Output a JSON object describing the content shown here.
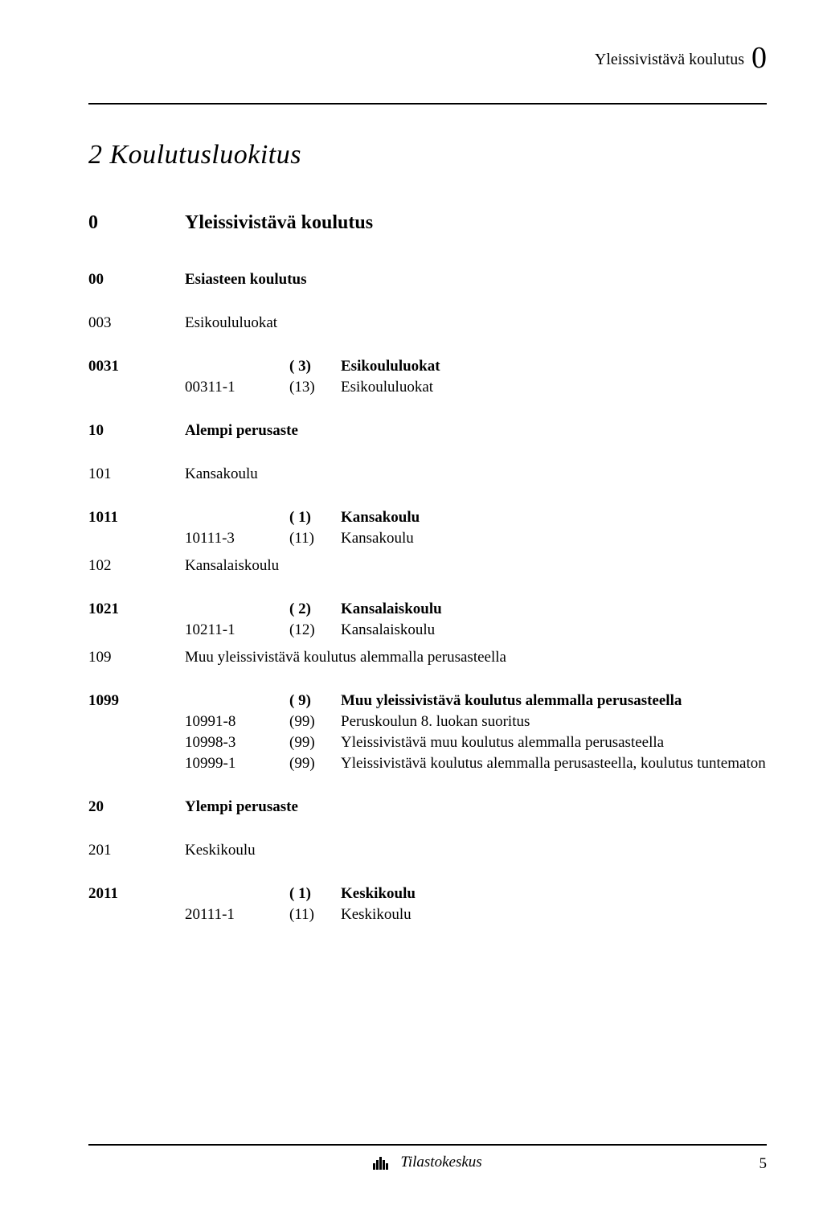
{
  "header": {
    "category": "Yleissivistävä koulutus",
    "big_code": "0"
  },
  "chapter": {
    "title": "2 Koulutusluokitus"
  },
  "section": {
    "code": "0",
    "name": "Yleissivistävä koulutus"
  },
  "entries": [
    {
      "type": "level1",
      "code": "00",
      "name": "Esiasteen koulutus",
      "bold": true
    },
    {
      "type": "gap"
    },
    {
      "type": "level1",
      "code": "003",
      "name": "Esikoululuokat",
      "bold": false
    },
    {
      "type": "gap"
    },
    {
      "type": "level2",
      "code": "0031",
      "sub": "",
      "paren": "( 3)",
      "name": "Esikoululuokat",
      "bold": true
    },
    {
      "type": "level2",
      "code": "",
      "sub": "00311-1",
      "paren": "(13)",
      "name": "Esikoululuokat",
      "bold": false
    },
    {
      "type": "gap"
    },
    {
      "type": "level1",
      "code": "10",
      "name": "Alempi perusaste",
      "bold": true
    },
    {
      "type": "gap"
    },
    {
      "type": "level1",
      "code": "101",
      "name": "Kansakoulu",
      "bold": false
    },
    {
      "type": "gap"
    },
    {
      "type": "level2",
      "code": "1011",
      "sub": "",
      "paren": "( 1)",
      "name": "Kansakoulu",
      "bold": true
    },
    {
      "type": "level2",
      "code": "",
      "sub": "10111-3",
      "paren": "(11)",
      "name": "Kansakoulu",
      "bold": false
    },
    {
      "type": "smallgap"
    },
    {
      "type": "level1",
      "code": "102",
      "name": "Kansalaiskoulu",
      "bold": false
    },
    {
      "type": "gap"
    },
    {
      "type": "level2",
      "code": "1021",
      "sub": "",
      "paren": "( 2)",
      "name": "Kansalaiskoulu",
      "bold": true
    },
    {
      "type": "level2",
      "code": "",
      "sub": "10211-1",
      "paren": "(12)",
      "name": "Kansalaiskoulu",
      "bold": false
    },
    {
      "type": "smallgap"
    },
    {
      "type": "level1",
      "code": "109",
      "name": "Muu yleissivistävä koulutus alemmalla perusasteella",
      "bold": false
    },
    {
      "type": "gap"
    },
    {
      "type": "level2",
      "code": "1099",
      "sub": "",
      "paren": "( 9)",
      "name": "Muu yleissivistävä koulutus alemmalla perusasteella",
      "bold": true
    },
    {
      "type": "level2",
      "code": "",
      "sub": "10991-8",
      "paren": "(99)",
      "name": "Peruskoulun 8. luokan suoritus",
      "bold": false
    },
    {
      "type": "level2",
      "code": "",
      "sub": "10998-3",
      "paren": "(99)",
      "name": "Yleissivistävä muu koulutus alemmalla perusasteella",
      "bold": false
    },
    {
      "type": "level2",
      "code": "",
      "sub": "10999-1",
      "paren": "(99)",
      "name": "Yleissivistävä koulutus alemmalla perusasteella, koulutus tuntematon",
      "bold": false
    },
    {
      "type": "gap"
    },
    {
      "type": "level1",
      "code": "20",
      "name": "Ylempi perusaste",
      "bold": true
    },
    {
      "type": "gap"
    },
    {
      "type": "level1",
      "code": "201",
      "name": "Keskikoulu",
      "bold": false
    },
    {
      "type": "gap"
    },
    {
      "type": "level2",
      "code": "2011",
      "sub": "",
      "paren": "( 1)",
      "name": "Keskikoulu",
      "bold": true
    },
    {
      "type": "level2",
      "code": "",
      "sub": "20111-1",
      "paren": "(11)",
      "name": "Keskikoulu",
      "bold": false
    }
  ],
  "footer": {
    "label": "Tilastokeskus",
    "page_number": "5"
  }
}
